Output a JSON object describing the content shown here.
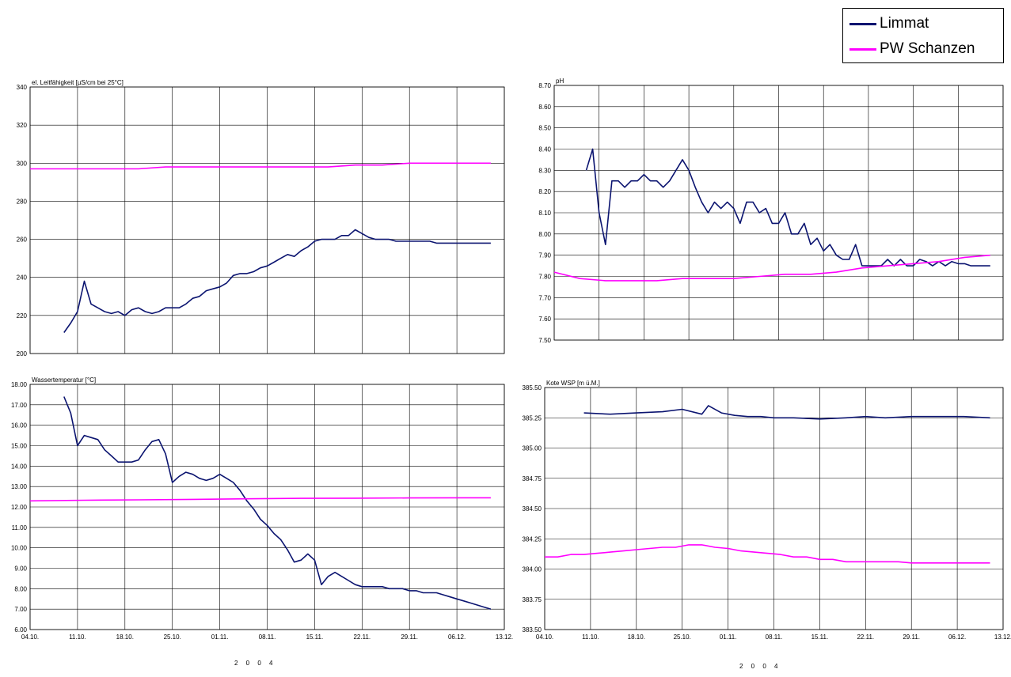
{
  "legend": {
    "entries": [
      {
        "label": "Limmat",
        "color": "#0b1470"
      },
      {
        "label": "PW Schanzen",
        "color": "#ff00ff"
      }
    ]
  },
  "year_labels": [
    "2 0 0 4",
    "2 0 0 4"
  ],
  "chart_data": [
    {
      "type": "line",
      "title": "el. Leitfähigkeit [µS/cm bei 25°C]",
      "ylim": [
        200,
        340
      ],
      "yticks": [
        "200",
        "220",
        "240",
        "260",
        "280",
        "300",
        "320",
        "340"
      ],
      "xticks": [
        "04.10.",
        "11.10.",
        "18.10.",
        "25.10.",
        "01.11.",
        "08.11.",
        "15.11.",
        "22.11.",
        "29.11.",
        "06.12.",
        "13.12."
      ],
      "xticks_shown": false,
      "grid": true,
      "series": [
        {
          "name": "Limmat",
          "x": [
            5,
            6,
            7,
            8,
            9,
            10,
            11,
            12,
            13,
            14,
            15,
            16,
            17,
            18,
            19,
            20,
            21,
            22,
            23,
            24,
            25,
            26,
            27,
            28,
            29,
            30,
            31,
            32,
            33,
            34,
            35,
            36,
            37,
            38,
            39,
            40,
            41,
            42,
            43,
            44,
            45,
            46,
            47,
            48,
            49,
            50,
            51,
            52,
            53,
            54,
            55,
            56,
            57,
            58,
            59,
            60,
            61,
            62,
            63,
            64,
            65,
            66,
            67,
            68
          ],
          "y": [
            211,
            216,
            222,
            238,
            226,
            224,
            222,
            221,
            222,
            220,
            223,
            224,
            222,
            221,
            222,
            224,
            224,
            224,
            226,
            229,
            230,
            233,
            234,
            235,
            237,
            241,
            242,
            242,
            243,
            245,
            246,
            248,
            250,
            252,
            251,
            254,
            256,
            259,
            260,
            260,
            260,
            262,
            262,
            265,
            263,
            261,
            260,
            260,
            260,
            259,
            259,
            259,
            259,
            259,
            259,
            258,
            258,
            258,
            258,
            258,
            258,
            258,
            258,
            258
          ]
        },
        {
          "name": "PW Schanzen",
          "x": [
            0,
            4,
            8,
            12,
            16,
            20,
            24,
            28,
            32,
            36,
            40,
            44,
            48,
            52,
            56,
            60,
            64,
            68
          ],
          "y": [
            297,
            297,
            297,
            297,
            297,
            298,
            298,
            298,
            298,
            298,
            298,
            298,
            299,
            299,
            300,
            300,
            300,
            300
          ]
        }
      ]
    },
    {
      "type": "line",
      "title": "pH",
      "ylim": [
        7.5,
        8.7
      ],
      "yticks": [
        "7.50",
        "7.60",
        "7.70",
        "7.80",
        "7.90",
        "8.00",
        "8.10",
        "8.20",
        "8.30",
        "8.40",
        "8.50",
        "8.60",
        "8.70"
      ],
      "xticks": [
        "04.10.",
        "11.10.",
        "18.10.",
        "25.10.",
        "01.11.",
        "08.11.",
        "15.11.",
        "22.11.",
        "29.11.",
        "06.12.",
        "13.12."
      ],
      "xticks_shown": false,
      "grid": true,
      "series": [
        {
          "name": "Limmat",
          "x": [
            5,
            6,
            7,
            8,
            9,
            10,
            11,
            12,
            13,
            14,
            15,
            16,
            17,
            18,
            19,
            20,
            21,
            22,
            23,
            24,
            25,
            26,
            27,
            28,
            29,
            30,
            31,
            32,
            33,
            34,
            35,
            36,
            37,
            38,
            39,
            40,
            41,
            42,
            43,
            44,
            45,
            46,
            47,
            48,
            49,
            50,
            51,
            52,
            53,
            54,
            55,
            56,
            57,
            58,
            59,
            60,
            61,
            62,
            63,
            64,
            65,
            66,
            67,
            68
          ],
          "y": [
            8.3,
            8.4,
            8.1,
            7.95,
            8.25,
            8.25,
            8.22,
            8.25,
            8.25,
            8.28,
            8.25,
            8.25,
            8.22,
            8.25,
            8.3,
            8.35,
            8.3,
            8.22,
            8.15,
            8.1,
            8.15,
            8.12,
            8.15,
            8.12,
            8.05,
            8.15,
            8.15,
            8.1,
            8.12,
            8.05,
            8.05,
            8.1,
            8.0,
            8.0,
            8.05,
            7.95,
            7.98,
            7.92,
            7.95,
            7.9,
            7.88,
            7.88,
            7.95,
            7.85,
            7.85,
            7.85,
            7.85,
            7.88,
            7.85,
            7.88,
            7.85,
            7.85,
            7.88,
            7.87,
            7.85,
            7.87,
            7.85,
            7.87,
            7.86,
            7.86,
            7.85,
            7.85,
            7.85,
            7.85
          ]
        },
        {
          "name": "PW Schanzen",
          "x": [
            0,
            4,
            8,
            12,
            16,
            20,
            24,
            28,
            32,
            36,
            40,
            44,
            48,
            52,
            56,
            60,
            64,
            68
          ],
          "y": [
            7.82,
            7.79,
            7.78,
            7.78,
            7.78,
            7.79,
            7.79,
            7.79,
            7.8,
            7.81,
            7.81,
            7.82,
            7.84,
            7.85,
            7.86,
            7.87,
            7.89,
            7.9
          ]
        }
      ]
    },
    {
      "type": "line",
      "title": "Wassertemperatur  [°C]",
      "ylim": [
        6,
        18
      ],
      "yticks": [
        "6.00",
        "7.00",
        "8.00",
        "9.00",
        "10.00",
        "11.00",
        "12.00",
        "13.00",
        "14.00",
        "15.00",
        "16.00",
        "17.00",
        "18.00"
      ],
      "xticks": [
        "04.10.",
        "11.10.",
        "18.10.",
        "25.10.",
        "01.11.",
        "08.11.",
        "15.11.",
        "22.11.",
        "29.11.",
        "06.12.",
        "13.12."
      ],
      "xticks_shown": true,
      "xlabel": "2 0 0 4",
      "grid": true,
      "series": [
        {
          "name": "Limmat",
          "x": [
            5,
            6,
            7,
            8,
            9,
            10,
            11,
            12,
            13,
            14,
            15,
            16,
            17,
            18,
            19,
            20,
            21,
            22,
            23,
            24,
            25,
            26,
            27,
            28,
            29,
            30,
            31,
            32,
            33,
            34,
            35,
            36,
            37,
            38,
            39,
            40,
            41,
            42,
            43,
            44,
            45,
            46,
            47,
            48,
            49,
            50,
            51,
            52,
            53,
            54,
            55,
            56,
            57,
            58,
            59,
            60,
            61,
            62,
            63,
            64,
            65,
            66,
            67,
            68
          ],
          "y": [
            17.4,
            16.6,
            15,
            15.5,
            15.4,
            15.3,
            14.8,
            14.5,
            14.2,
            14.2,
            14.2,
            14.3,
            14.8,
            15.2,
            15.3,
            14.6,
            13.2,
            13.5,
            13.7,
            13.6,
            13.4,
            13.3,
            13.4,
            13.6,
            13.4,
            13.2,
            12.8,
            12.3,
            11.9,
            11.4,
            11.1,
            10.7,
            10.4,
            9.9,
            9.3,
            9.4,
            9.7,
            9.4,
            8.2,
            8.6,
            8.8,
            8.6,
            8.4,
            8.2,
            8.1,
            8.1,
            8.1,
            8.1,
            8.0,
            8.0,
            8.0,
            7.9,
            7.9,
            7.8,
            7.8,
            7.8,
            7.7,
            7.6,
            7.5,
            7.4,
            7.3,
            7.2,
            7.1,
            7.0
          ]
        },
        {
          "name": "PW Schanzen",
          "x": [
            0,
            8,
            16,
            24,
            32,
            40,
            48,
            56,
            64,
            68
          ],
          "y": [
            12.3,
            12.33,
            12.35,
            12.37,
            12.4,
            12.42,
            12.43,
            12.44,
            12.45,
            12.45
          ]
        }
      ]
    },
    {
      "type": "line",
      "title": "Kote WSP [m ü.M.]",
      "ylim": [
        383.5,
        385.5
      ],
      "yticks": [
        "383.50",
        "383.75",
        "384.00",
        "384.25",
        "384.50",
        "384.75",
        "385.00",
        "385.25",
        "385.50"
      ],
      "xticks": [
        "04.10.",
        "11.10.",
        "18.10.",
        "25.10.",
        "01.11.",
        "08.11.",
        "15.11.",
        "22.11.",
        "29.11.",
        "06.12.",
        "13.12."
      ],
      "xticks_shown": true,
      "xlabel": "2 0 0 4",
      "grid": true,
      "series": [
        {
          "name": "Limmat",
          "x": [
            6,
            10,
            14,
            18,
            21,
            24,
            25,
            27,
            29,
            31,
            33,
            35,
            38,
            42,
            46,
            49,
            52,
            56,
            60,
            64,
            68
          ],
          "y": [
            385.29,
            385.28,
            385.29,
            385.3,
            385.32,
            385.28,
            385.35,
            385.29,
            385.27,
            385.26,
            385.26,
            385.25,
            385.25,
            385.24,
            385.25,
            385.26,
            385.25,
            385.26,
            385.26,
            385.26,
            385.25
          ]
        },
        {
          "name": "PW Schanzen",
          "x": [
            0,
            2,
            4,
            6,
            8,
            10,
            12,
            14,
            16,
            18,
            20,
            22,
            24,
            26,
            28,
            30,
            32,
            34,
            36,
            38,
            40,
            42,
            44,
            46,
            48,
            50,
            52,
            54,
            56,
            58,
            60,
            62,
            64,
            66,
            68
          ],
          "y": [
            384.1,
            384.1,
            384.12,
            384.12,
            384.13,
            384.14,
            384.15,
            384.16,
            384.17,
            384.18,
            384.18,
            384.2,
            384.2,
            384.18,
            384.17,
            384.15,
            384.14,
            384.13,
            384.12,
            384.1,
            384.1,
            384.08,
            384.08,
            384.06,
            384.06,
            384.06,
            384.06,
            384.06,
            384.05,
            384.05,
            384.05,
            384.05,
            384.05,
            384.05,
            384.05
          ]
        }
      ]
    }
  ]
}
